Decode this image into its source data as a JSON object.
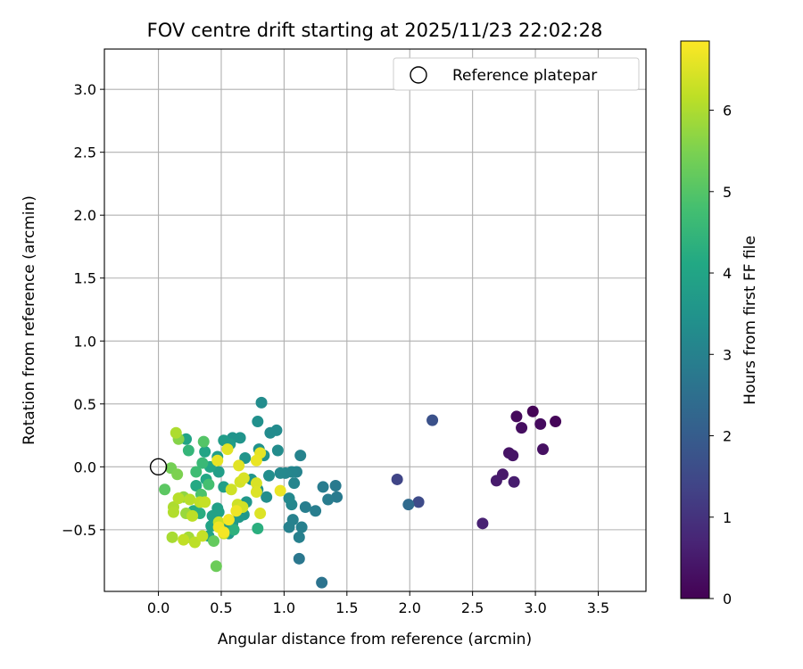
{
  "chart_data": {
    "type": "scatter",
    "title": "FOV centre drift starting at 2025/11/23 22:02:28",
    "xlabel": "Angular distance from reference (arcmin)",
    "ylabel": "Rotation from reference (arcmin)",
    "xlim": [
      -0.43,
      3.88
    ],
    "ylim": [
      -0.99,
      3.32
    ],
    "xticks": [
      0.0,
      0.5,
      1.0,
      1.5,
      2.0,
      2.5,
      3.0,
      3.5
    ],
    "xtick_labels": [
      "0.0",
      "0.5",
      "1.0",
      "1.5",
      "2.0",
      "2.5",
      "3.0",
      "3.5"
    ],
    "yticks": [
      -0.5,
      0.0,
      0.5,
      1.0,
      1.5,
      2.0,
      2.5,
      3.0
    ],
    "ytick_labels": [
      "−0.5",
      "0.0",
      "0.5",
      "1.0",
      "1.5",
      "2.0",
      "2.5",
      "3.0"
    ],
    "grid": true,
    "legend": {
      "position": "top-right",
      "entries": [
        "Reference platepar"
      ]
    },
    "reference_point": {
      "x": 0.0,
      "y": 0.0
    },
    "colorbar": {
      "label": "Hours from first FF file",
      "min": 0,
      "max": 6.85,
      "ticks": [
        0,
        1,
        2,
        3,
        4,
        5,
        6
      ],
      "tick_labels": [
        "0",
        "1",
        "2",
        "3",
        "4",
        "5",
        "6"
      ],
      "colormap": "viridis"
    },
    "points": [
      {
        "x": 2.98,
        "y": 0.44,
        "h": 0.05
      },
      {
        "x": 3.16,
        "y": 0.36,
        "h": 0.1
      },
      {
        "x": 2.85,
        "y": 0.4,
        "h": 0.15
      },
      {
        "x": 3.04,
        "y": 0.34,
        "h": 0.2
      },
      {
        "x": 2.89,
        "y": 0.31,
        "h": 0.25
      },
      {
        "x": 3.06,
        "y": 0.14,
        "h": 0.3
      },
      {
        "x": 2.79,
        "y": 0.11,
        "h": 0.35
      },
      {
        "x": 2.82,
        "y": 0.09,
        "h": 0.4
      },
      {
        "x": 2.74,
        "y": -0.06,
        "h": 0.45
      },
      {
        "x": 2.69,
        "y": -0.11,
        "h": 0.5
      },
      {
        "x": 2.83,
        "y": -0.12,
        "h": 0.55
      },
      {
        "x": 2.58,
        "y": -0.45,
        "h": 0.65
      },
      {
        "x": 1.9,
        "y": -0.1,
        "h": 1.4
      },
      {
        "x": 2.07,
        "y": -0.28,
        "h": 1.55
      },
      {
        "x": 2.18,
        "y": 0.37,
        "h": 1.7
      },
      {
        "x": 1.99,
        "y": -0.3,
        "h": 2.35
      },
      {
        "x": 1.3,
        "y": -0.92,
        "h": 2.6
      },
      {
        "x": 1.12,
        "y": -0.73,
        "h": 2.7
      },
      {
        "x": 1.42,
        "y": -0.24,
        "h": 2.8
      },
      {
        "x": 1.41,
        "y": -0.15,
        "h": 2.8
      },
      {
        "x": 1.31,
        "y": -0.16,
        "h": 2.85
      },
      {
        "x": 1.35,
        "y": -0.26,
        "h": 2.85
      },
      {
        "x": 1.25,
        "y": -0.35,
        "h": 2.9
      },
      {
        "x": 1.17,
        "y": -0.32,
        "h": 2.9
      },
      {
        "x": 1.14,
        "y": -0.48,
        "h": 2.95
      },
      {
        "x": 1.12,
        "y": -0.56,
        "h": 2.95
      },
      {
        "x": 1.07,
        "y": -0.42,
        "h": 3.0
      },
      {
        "x": 1.04,
        "y": -0.48,
        "h": 3.0
      },
      {
        "x": 1.13,
        "y": 0.09,
        "h": 3.05
      },
      {
        "x": 1.1,
        "y": -0.04,
        "h": 3.05
      },
      {
        "x": 1.06,
        "y": -0.04,
        "h": 3.1
      },
      {
        "x": 1.08,
        "y": -0.13,
        "h": 3.1
      },
      {
        "x": 1.01,
        "y": -0.05,
        "h": 3.15
      },
      {
        "x": 1.06,
        "y": -0.3,
        "h": 3.15
      },
      {
        "x": 1.04,
        "y": -0.25,
        "h": 3.2
      },
      {
        "x": 0.97,
        "y": -0.05,
        "h": 3.2
      },
      {
        "x": 0.94,
        "y": 0.29,
        "h": 3.25
      },
      {
        "x": 0.89,
        "y": 0.27,
        "h": 3.25
      },
      {
        "x": 0.82,
        "y": 0.51,
        "h": 3.3
      },
      {
        "x": 0.95,
        "y": 0.13,
        "h": 3.3
      },
      {
        "x": 0.88,
        "y": -0.07,
        "h": 3.35
      },
      {
        "x": 0.86,
        "y": -0.24,
        "h": 3.35
      },
      {
        "x": 0.79,
        "y": -0.18,
        "h": 3.4
      },
      {
        "x": 0.79,
        "y": 0.36,
        "h": 3.4
      },
      {
        "x": 0.8,
        "y": 0.14,
        "h": 3.45
      },
      {
        "x": 0.84,
        "y": 0.09,
        "h": 3.45
      },
      {
        "x": 0.65,
        "y": 0.23,
        "h": 3.5
      },
      {
        "x": 0.59,
        "y": 0.23,
        "h": 3.5
      },
      {
        "x": 0.69,
        "y": 0.07,
        "h": 3.55
      },
      {
        "x": 0.74,
        "y": -0.1,
        "h": 3.55
      },
      {
        "x": 0.7,
        "y": -0.28,
        "h": 3.6
      },
      {
        "x": 0.68,
        "y": -0.38,
        "h": 3.6
      },
      {
        "x": 0.64,
        "y": -0.4,
        "h": 3.65
      },
      {
        "x": 0.59,
        "y": -0.45,
        "h": 3.65
      },
      {
        "x": 0.56,
        "y": -0.53,
        "h": 3.7
      },
      {
        "x": 0.53,
        "y": -0.49,
        "h": 3.7
      },
      {
        "x": 0.52,
        "y": 0.21,
        "h": 3.75
      },
      {
        "x": 0.57,
        "y": 0.18,
        "h": 3.75
      },
      {
        "x": 0.47,
        "y": 0.08,
        "h": 3.8
      },
      {
        "x": 0.48,
        "y": -0.04,
        "h": 3.8
      },
      {
        "x": 0.52,
        "y": -0.16,
        "h": 3.85
      },
      {
        "x": 0.47,
        "y": -0.33,
        "h": 3.85
      },
      {
        "x": 0.48,
        "y": -0.36,
        "h": 3.9
      },
      {
        "x": 0.43,
        "y": -0.39,
        "h": 3.9
      },
      {
        "x": 0.42,
        "y": -0.47,
        "h": 3.95
      },
      {
        "x": 0.4,
        "y": -0.55,
        "h": 3.95
      },
      {
        "x": 0.22,
        "y": 0.22,
        "h": 4.0
      },
      {
        "x": 0.37,
        "y": 0.12,
        "h": 4.0
      },
      {
        "x": 0.41,
        "y": 0.0,
        "h": 4.05
      },
      {
        "x": 0.38,
        "y": -0.1,
        "h": 4.1
      },
      {
        "x": 0.3,
        "y": -0.15,
        "h": 4.15
      },
      {
        "x": 0.28,
        "y": -0.35,
        "h": 4.2
      },
      {
        "x": 0.33,
        "y": -0.37,
        "h": 4.25
      },
      {
        "x": 0.79,
        "y": -0.49,
        "h": 4.3
      },
      {
        "x": 0.6,
        "y": -0.5,
        "h": 4.35
      },
      {
        "x": 0.24,
        "y": 0.13,
        "h": 4.5
      },
      {
        "x": 0.35,
        "y": 0.03,
        "h": 4.6
      },
      {
        "x": 0.3,
        "y": -0.04,
        "h": 4.7
      },
      {
        "x": 0.4,
        "y": -0.14,
        "h": 4.8
      },
      {
        "x": 0.34,
        "y": -0.22,
        "h": 4.9
      },
      {
        "x": 0.36,
        "y": 0.2,
        "h": 5.0
      },
      {
        "x": 0.05,
        "y": -0.18,
        "h": 5.1
      },
      {
        "x": 0.44,
        "y": -0.59,
        "h": 5.2
      },
      {
        "x": 0.46,
        "y": -0.79,
        "h": 5.3
      },
      {
        "x": 0.1,
        "y": -0.01,
        "h": 5.4
      },
      {
        "x": 0.15,
        "y": -0.06,
        "h": 5.5
      },
      {
        "x": 0.16,
        "y": 0.22,
        "h": 5.6
      },
      {
        "x": 0.2,
        "y": -0.24,
        "h": 5.7
      },
      {
        "x": 0.22,
        "y": -0.37,
        "h": 5.8
      },
      {
        "x": 0.24,
        "y": -0.56,
        "h": 5.9
      },
      {
        "x": 0.11,
        "y": -0.56,
        "h": 5.95
      },
      {
        "x": 0.14,
        "y": 0.27,
        "h": 6.0
      },
      {
        "x": 0.12,
        "y": -0.32,
        "h": 6.0
      },
      {
        "x": 0.12,
        "y": -0.36,
        "h": 6.05
      },
      {
        "x": 0.16,
        "y": -0.25,
        "h": 6.1
      },
      {
        "x": 0.25,
        "y": -0.26,
        "h": 6.1
      },
      {
        "x": 0.27,
        "y": -0.39,
        "h": 6.15
      },
      {
        "x": 0.29,
        "y": -0.6,
        "h": 6.15
      },
      {
        "x": 0.2,
        "y": -0.58,
        "h": 6.2
      },
      {
        "x": 0.33,
        "y": -0.28,
        "h": 6.2
      },
      {
        "x": 0.37,
        "y": -0.28,
        "h": 6.25
      },
      {
        "x": 0.35,
        "y": -0.55,
        "h": 6.25
      },
      {
        "x": 0.52,
        "y": -0.53,
        "h": 6.3
      },
      {
        "x": 0.48,
        "y": -0.44,
        "h": 6.3
      },
      {
        "x": 0.58,
        "y": -0.18,
        "h": 6.35
      },
      {
        "x": 0.63,
        "y": -0.3,
        "h": 6.35
      },
      {
        "x": 0.67,
        "y": -0.32,
        "h": 6.4
      },
      {
        "x": 0.65,
        "y": -0.12,
        "h": 6.4
      },
      {
        "x": 0.68,
        "y": -0.09,
        "h": 6.45
      },
      {
        "x": 0.78,
        "y": -0.13,
        "h": 6.45
      },
      {
        "x": 0.78,
        "y": -0.2,
        "h": 6.5
      },
      {
        "x": 0.81,
        "y": -0.37,
        "h": 6.5
      },
      {
        "x": 0.55,
        "y": 0.14,
        "h": 6.55
      },
      {
        "x": 0.64,
        "y": 0.01,
        "h": 6.55
      },
      {
        "x": 0.47,
        "y": 0.05,
        "h": 6.6
      },
      {
        "x": 0.81,
        "y": 0.11,
        "h": 6.6
      },
      {
        "x": 0.78,
        "y": 0.05,
        "h": 6.65
      },
      {
        "x": 0.97,
        "y": -0.19,
        "h": 6.65
      },
      {
        "x": 0.62,
        "y": -0.35,
        "h": 6.7
      },
      {
        "x": 0.48,
        "y": -0.48,
        "h": 6.7
      },
      {
        "x": 0.52,
        "y": -0.52,
        "h": 6.75
      },
      {
        "x": 0.56,
        "y": -0.42,
        "h": 6.75
      }
    ]
  }
}
